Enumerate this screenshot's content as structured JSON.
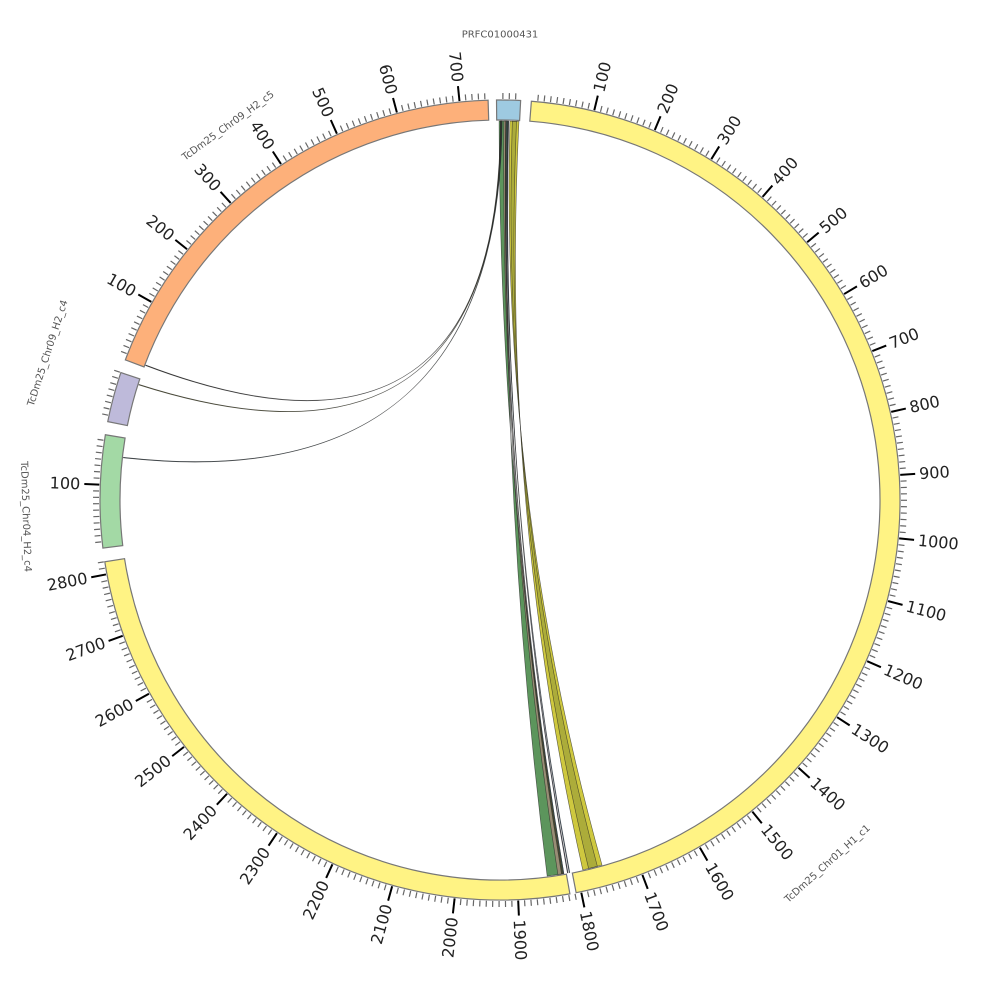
{
  "chromosomes": [
    {
      "id": "prfc",
      "name": "PRFC01000431",
      "length": 38,
      "color": "#9ecae1",
      "tick_labels": []
    },
    {
      "id": "c1",
      "name": "TcDm25_Chr01_H1_c1",
      "length": 2820,
      "color": "#fff384",
      "tick_labels": [
        "100",
        "200",
        "300",
        "400",
        "500",
        "600",
        "700",
        "800",
        "900",
        "1000",
        "1100",
        "1200",
        "1300",
        "1400",
        "1500",
        "1600",
        "1700",
        "1800",
        "1900",
        "2000",
        "2100",
        "2200",
        "2300",
        "2400",
        "2500",
        "2600",
        "2700",
        "2800"
      ]
    },
    {
      "id": "g4",
      "name": "TcDm25_Chr04_H2_c4",
      "length": 179,
      "color": "#a3d9a5",
      "tick_labels": [
        "100"
      ]
    },
    {
      "id": "p4",
      "name": "TcDm25_Chr09_H2_c4",
      "length": 80,
      "color": "#bebada",
      "tick_labels": []
    },
    {
      "id": "c5",
      "name": "TcDm25_Chr09_H2_c5",
      "length": 745,
      "color": "#fdb07a",
      "tick_labels": [
        "100",
        "200",
        "300",
        "400",
        "500",
        "600",
        "700"
      ]
    }
  ],
  "links": [
    {
      "from": "prfc",
      "from_range": [
        22,
        37
      ],
      "to": "c1",
      "to_range": [
        1757,
        1790
      ],
      "color": "#c9c22a"
    },
    {
      "from": "prfc",
      "from_range": [
        26,
        33
      ],
      "to": "c1",
      "to_range": [
        1765,
        1780
      ],
      "color": "#a8a83a"
    },
    {
      "from": "prfc",
      "from_range": [
        19,
        20
      ],
      "to": "c1",
      "to_range": [
        1815,
        1816
      ],
      "color": "#3b3b6b"
    },
    {
      "from": "prfc",
      "from_range": [
        18,
        19
      ],
      "to": "c1",
      "to_range": [
        1812,
        1813
      ],
      "color": "#4a7fb0"
    },
    {
      "from": "prfc",
      "from_range": [
        4,
        18
      ],
      "to": "c1",
      "to_range": [
        1822,
        1850
      ],
      "color": "#4a8a4a"
    },
    {
      "from": "prfc",
      "from_range": [
        12,
        15
      ],
      "to": "c1",
      "to_range": [
        1826,
        1832
      ],
      "color": "#a08c78"
    },
    {
      "from": "prfc",
      "from_range": [
        15,
        16
      ],
      "to": "c1",
      "to_range": [
        1824,
        1825
      ],
      "color": "#e07a3a"
    },
    {
      "from": "prfc",
      "from_range": [
        16,
        17
      ],
      "to": "c1",
      "to_range": [
        1822,
        1823
      ],
      "color": "#7ab8d8"
    },
    {
      "from": "prfc",
      "from_range": [
        6,
        7
      ],
      "to": "c5",
      "to_range": [
        3,
        4
      ],
      "color": "#333333"
    },
    {
      "from": "prfc",
      "from_range": [
        7,
        8
      ],
      "to": "p4",
      "to_range": [
        70,
        71
      ],
      "color": "#8a8a30"
    },
    {
      "from": "prfc",
      "from_range": [
        8,
        9
      ],
      "to": "g4",
      "to_range": [
        146,
        147
      ],
      "color": "#3a5a6a"
    }
  ]
}
